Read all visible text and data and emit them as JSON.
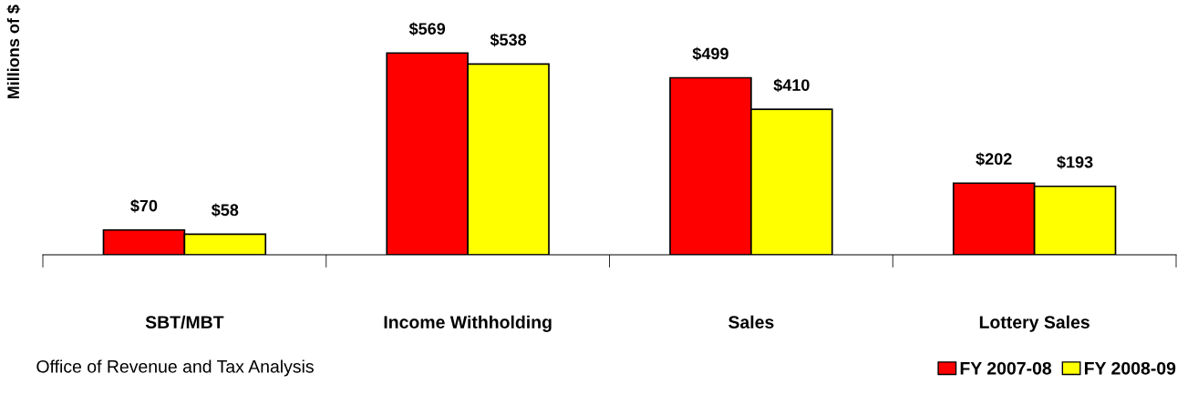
{
  "chart_data": {
    "type": "bar",
    "ylabel": "Millions of $",
    "categories": [
      "SBT/MBT",
      "Income Withholding",
      "Sales",
      "Lottery Sales"
    ],
    "series": [
      {
        "name": "FY 2007-08",
        "color": "#ff0000",
        "values": [
          70,
          569,
          499,
          202
        ],
        "value_labels": [
          "$70",
          "$569",
          "$499",
          "$202"
        ]
      },
      {
        "name": "FY 2008-09",
        "color": "#ffff00",
        "values": [
          58,
          538,
          410,
          193
        ],
        "value_labels": [
          "$58",
          "$538",
          "$410",
          "$193"
        ]
      }
    ],
    "legend": "bottom right",
    "grid": false,
    "annotations": [
      "Office of Revenue and Tax Analysis"
    ]
  }
}
